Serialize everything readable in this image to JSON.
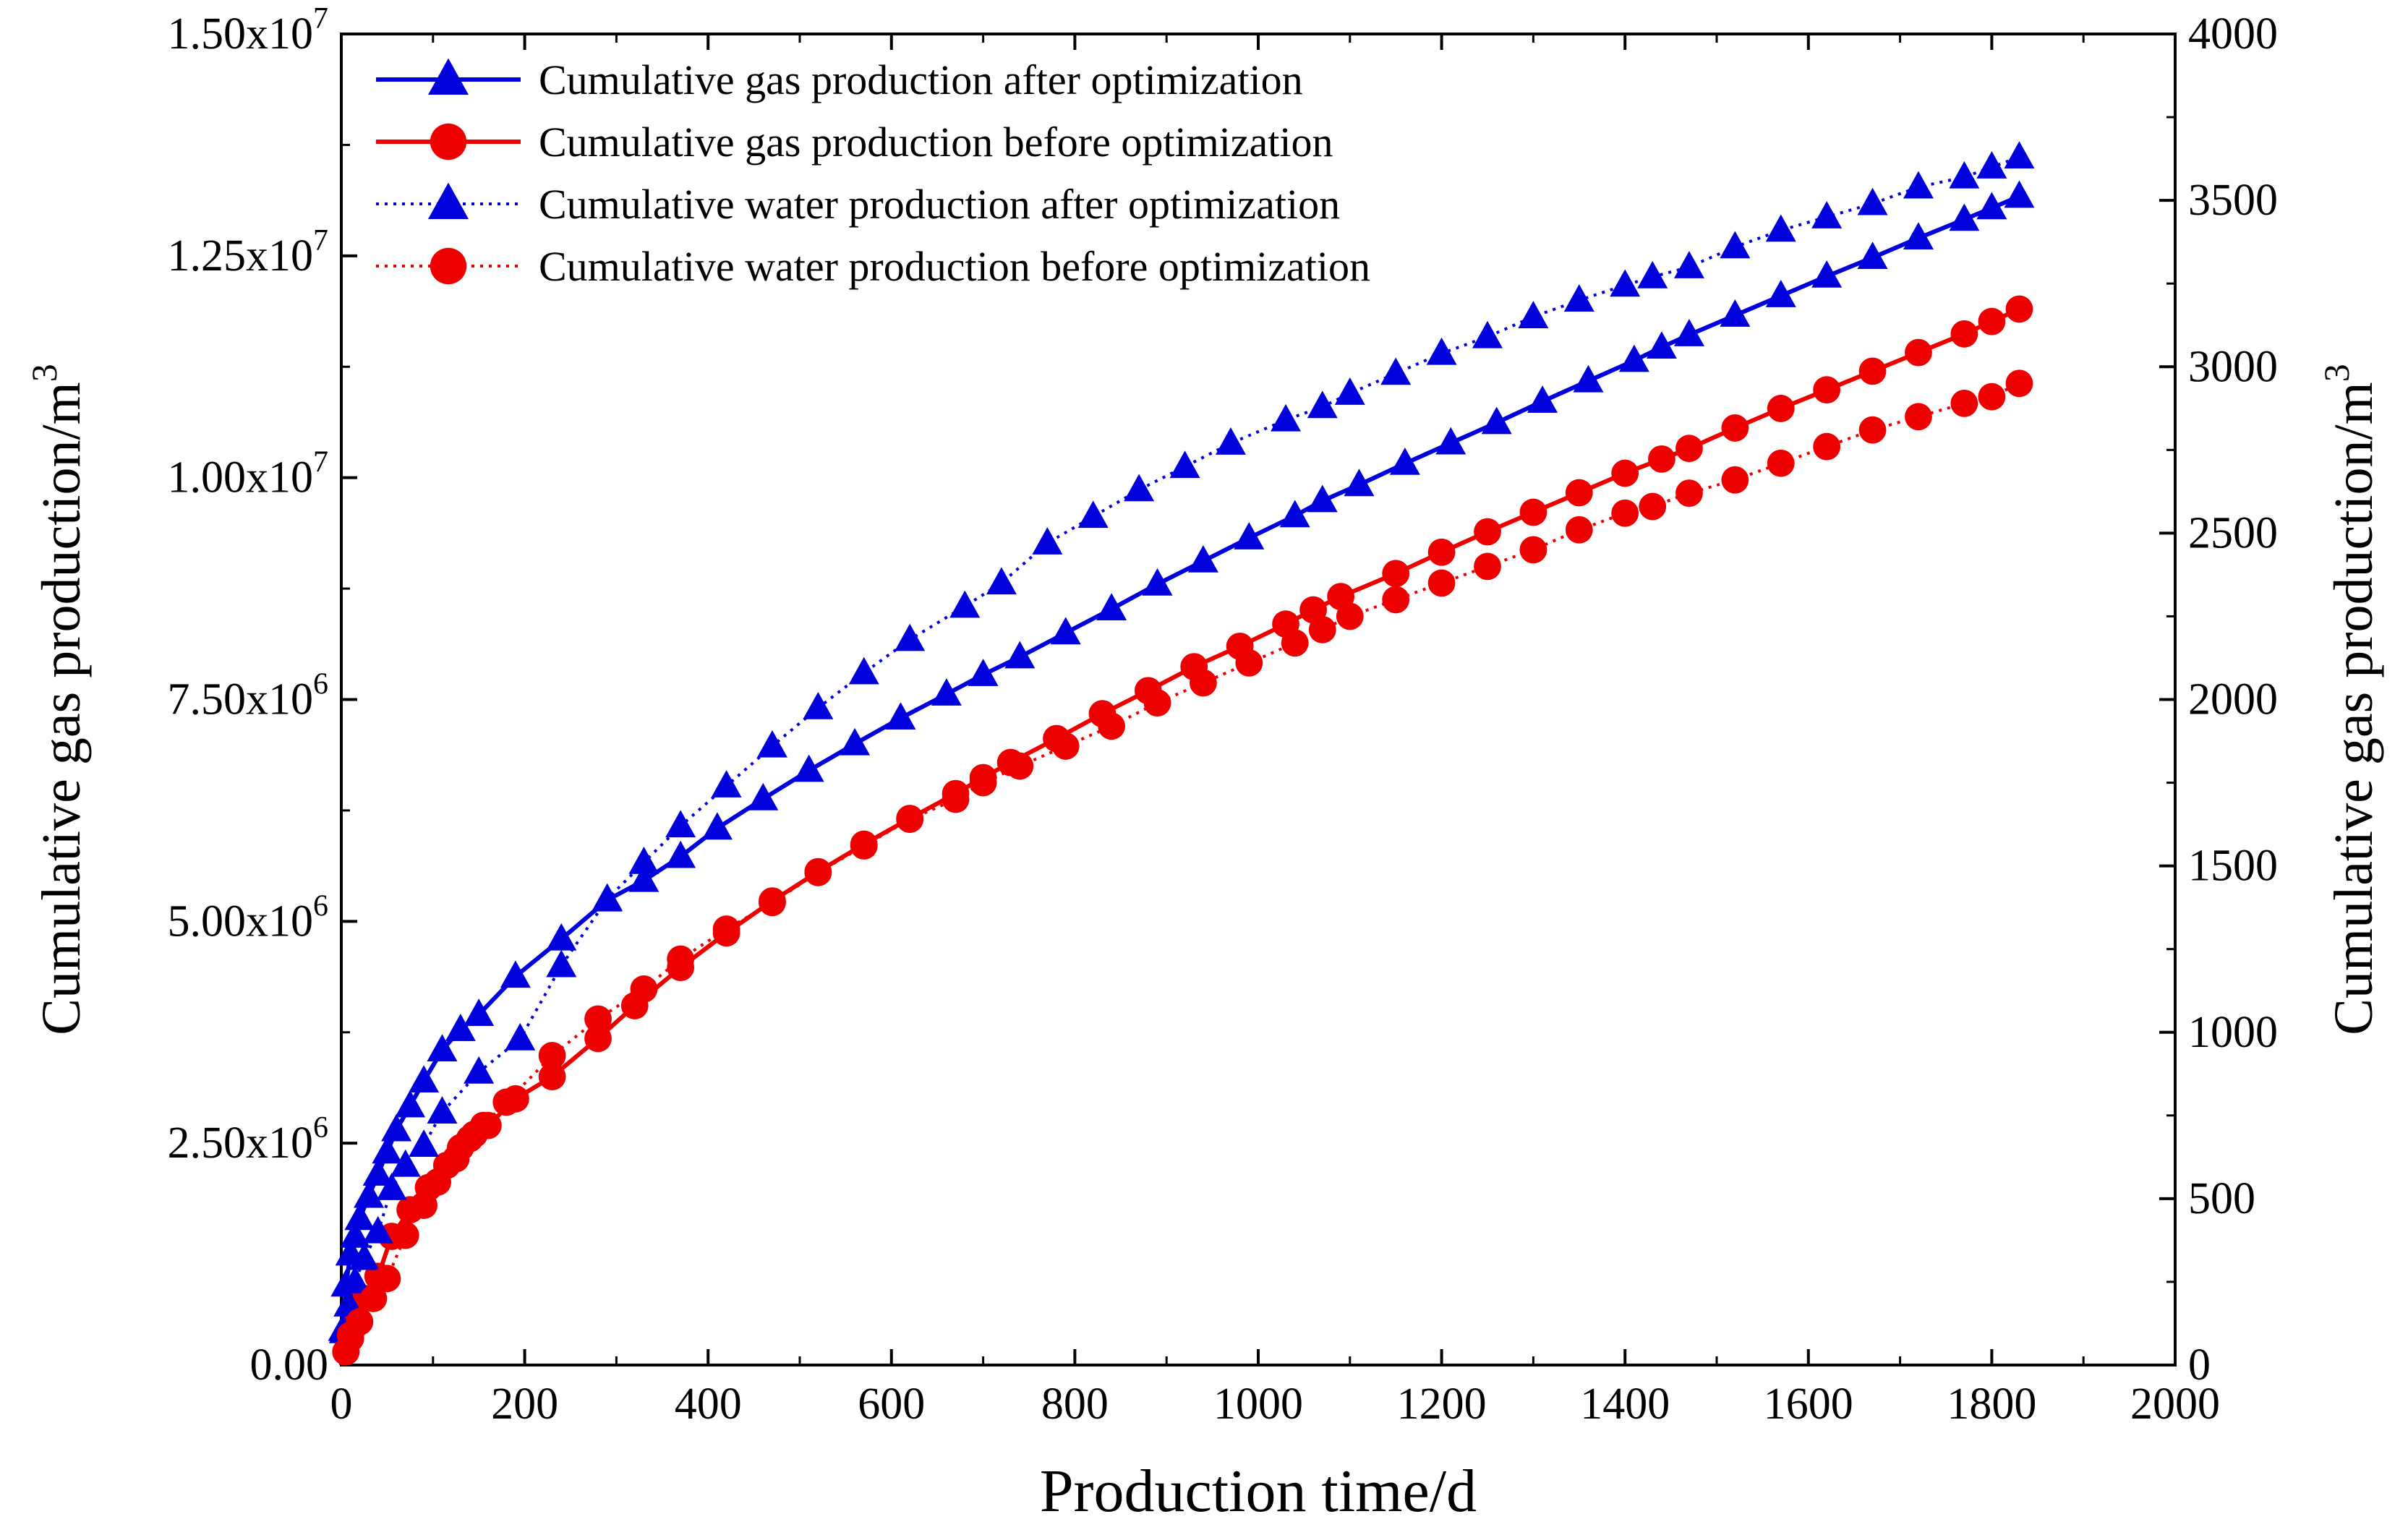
{
  "chart_data": {
    "type": "line",
    "title": "",
    "xlabel": "Production time/d",
    "ylabel_left": "Cumulative gas production/m",
    "ylabel_right": "Cumulative gas production/m",
    "ylabel_superscript": "3",
    "xlim": [
      0,
      2000
    ],
    "ylim_left": [
      0,
      15000000
    ],
    "ylim_right": [
      0,
      4000
    ],
    "x_ticks": [
      0,
      200,
      400,
      600,
      800,
      1000,
      1200,
      1400,
      1600,
      1800,
      2000
    ],
    "x_tick_labels": [
      "0",
      "200",
      "400",
      "600",
      "800",
      "1000",
      "1200",
      "1400",
      "1600",
      "1800",
      "2000"
    ],
    "y_left_ticks": [
      {
        "value": 0,
        "mantissa": "0.00",
        "exp": ""
      },
      {
        "value": 2500000,
        "mantissa": "2.50x10",
        "exp": "6"
      },
      {
        "value": 5000000,
        "mantissa": "5.00x10",
        "exp": "6"
      },
      {
        "value": 7500000,
        "mantissa": "7.50x10",
        "exp": "6"
      },
      {
        "value": 10000000,
        "mantissa": "1.00x10",
        "exp": "7"
      },
      {
        "value": 12500000,
        "mantissa": "1.25x10",
        "exp": "7"
      },
      {
        "value": 15000000,
        "mantissa": "1.50x10",
        "exp": "7"
      }
    ],
    "y_right_ticks": [
      0,
      500,
      1000,
      1500,
      2000,
      2500,
      3000,
      3500,
      4000
    ],
    "y_right_tick_labels": [
      "0",
      "500",
      "1000",
      "1500",
      "2000",
      "2500",
      "3000",
      "3500",
      "4000"
    ],
    "grid": false,
    "legend_position": "top-left",
    "series": [
      {
        "name": "Cumulative gas production after optimization",
        "axis": "left",
        "color": "#0000dd",
        "marker": "triangle",
        "line_style": "solid",
        "x": [
          0,
          2,
          5,
          10,
          15,
          20,
          30,
          40,
          50,
          60,
          75,
          90,
          110,
          130,
          150,
          190,
          240,
          290,
          330,
          370,
          410,
          460,
          510,
          560,
          610,
          660,
          700,
          740,
          790,
          840,
          890,
          940,
          990,
          1040,
          1070,
          1110,
          1160,
          1210,
          1260,
          1310,
          1360,
          1410,
          1440,
          1470,
          1520,
          1570,
          1620,
          1670,
          1720,
          1770,
          1800,
          1830
        ],
        "y": [
          0,
          400000,
          900000,
          1250000,
          1450000,
          1650000,
          1900000,
          2150000,
          2400000,
          2650000,
          2920000,
          3200000,
          3550000,
          3780000,
          3950000,
          4380000,
          4800000,
          5240000,
          5460000,
          5730000,
          6050000,
          6380000,
          6700000,
          7000000,
          7290000,
          7560000,
          7780000,
          7980000,
          8250000,
          8520000,
          8800000,
          9060000,
          9320000,
          9570000,
          9740000,
          9920000,
          10160000,
          10390000,
          10620000,
          10860000,
          11090000,
          11320000,
          11470000,
          11610000,
          11830000,
          12050000,
          12270000,
          12480000,
          12700000,
          12910000,
          13040000,
          13170000
        ]
      },
      {
        "name": "Cumulative gas production before optimization",
        "axis": "left",
        "color": "#ee0000",
        "marker": "circle",
        "line_style": "solid",
        "x": [
          0,
          5,
          10,
          15,
          25,
          40,
          55,
          75,
          95,
          115,
          130,
          145,
          160,
          190,
          230,
          280,
          320,
          370,
          420,
          470,
          520,
          570,
          620,
          670,
          700,
          730,
          780,
          830,
          880,
          930,
          980,
          1030,
          1060,
          1090,
          1150,
          1200,
          1250,
          1300,
          1350,
          1400,
          1440,
          1470,
          1520,
          1570,
          1620,
          1670,
          1720,
          1770,
          1800,
          1830
        ],
        "y": [
          0,
          150000,
          300000,
          450000,
          750000,
          1000000,
          1450000,
          1750000,
          2000000,
          2250000,
          2450000,
          2600000,
          2700000,
          3000000,
          3250000,
          3680000,
          4050000,
          4480000,
          4870000,
          5230000,
          5560000,
          5870000,
          6160000,
          6440000,
          6620000,
          6790000,
          7060000,
          7340000,
          7600000,
          7870000,
          8100000,
          8350000,
          8510000,
          8660000,
          8920000,
          9160000,
          9390000,
          9610000,
          9830000,
          10050000,
          10210000,
          10330000,
          10560000,
          10780000,
          10990000,
          11200000,
          11410000,
          11620000,
          11760000,
          11900000
        ]
      },
      {
        "name": "Cumulative water production after optimization",
        "axis": "right",
        "color": "#0000dd",
        "marker": "triangle",
        "line_style": "dotted",
        "x": [
          0,
          3,
          8,
          15,
          25,
          40,
          55,
          70,
          90,
          110,
          150,
          195,
          240,
          290,
          330,
          370,
          420,
          470,
          520,
          570,
          620,
          680,
          720,
          770,
          820,
          870,
          920,
          970,
          1030,
          1070,
          1100,
          1150,
          1200,
          1250,
          1300,
          1350,
          1400,
          1430,
          1470,
          1520,
          1570,
          1620,
          1670,
          1720,
          1770,
          1800,
          1830
        ],
        "y": [
          0,
          100,
          180,
          250,
          320,
          400,
          530,
          600,
          660,
          760,
          880,
          980,
          1200,
          1400,
          1510,
          1620,
          1740,
          1860,
          1975,
          2080,
          2180,
          2280,
          2350,
          2470,
          2550,
          2630,
          2700,
          2770,
          2840,
          2880,
          2920,
          2980,
          3040,
          3090,
          3150,
          3200,
          3245,
          3270,
          3300,
          3360,
          3410,
          3450,
          3490,
          3540,
          3570,
          3600,
          3630
        ]
      },
      {
        "name": "Cumulative water production before optimization",
        "axis": "right",
        "color": "#ee0000",
        "marker": "circle",
        "line_style": "dotted",
        "x": [
          0,
          5,
          10,
          20,
          35,
          50,
          70,
          90,
          105,
          125,
          140,
          155,
          180,
          230,
          280,
          330,
          370,
          420,
          470,
          520,
          570,
          620,
          670,
          700,
          740,
          790,
          840,
          890,
          940,
          990,
          1040,
          1070,
          1100,
          1150,
          1200,
          1250,
          1300,
          1350,
          1400,
          1430,
          1470,
          1520,
          1570,
          1620,
          1670,
          1720,
          1770,
          1800,
          1830
        ],
        "y": [
          0,
          40,
          90,
          130,
          200,
          260,
          390,
          480,
          550,
          620,
          680,
          720,
          790,
          930,
          1040,
          1130,
          1220,
          1310,
          1390,
          1480,
          1560,
          1640,
          1700,
          1750,
          1800,
          1860,
          1920,
          1990,
          2050,
          2110,
          2170,
          2210,
          2250,
          2300,
          2350,
          2400,
          2450,
          2510,
          2560,
          2580,
          2620,
          2660,
          2710,
          2760,
          2810,
          2850,
          2890,
          2910,
          2950
        ]
      }
    ]
  }
}
